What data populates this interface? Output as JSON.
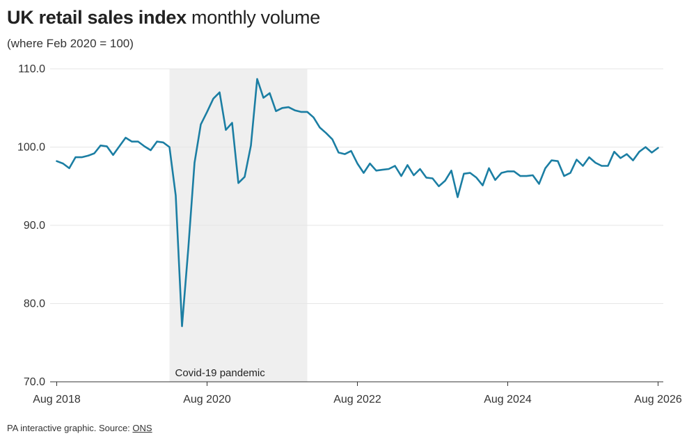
{
  "header": {
    "title_bold": "UK retail sales index",
    "title_rest": "monthly volume",
    "subtitle": "(where Feb 2020 = 100)"
  },
  "footer": {
    "text": "PA interactive graphic. Source: ",
    "source_link": "ONS"
  },
  "colors": {
    "line": "#1b7ea3",
    "shade": "#efefef",
    "grid": "#e6e6e6",
    "axis": "#333333"
  },
  "chart_data": {
    "type": "line",
    "title": "UK retail sales index monthly volume",
    "subtitle": "(where Feb 2020 = 100)",
    "xlabel": "",
    "ylabel": "",
    "ylim": [
      70,
      110
    ],
    "yticks": [
      70,
      80,
      90,
      100,
      110
    ],
    "ytick_labels": [
      "70.0",
      "80.0",
      "90.0",
      "100.0",
      "110.0"
    ],
    "xticks": [
      {
        "date": "2018-08",
        "label": "Aug 2018"
      },
      {
        "date": "2020-08",
        "label": "Aug 2020"
      },
      {
        "date": "2022-08",
        "label": "Aug 2022"
      },
      {
        "date": "2024-08",
        "label": "Aug 2024"
      },
      {
        "date": "2026-08",
        "label": "Aug 2026"
      }
    ],
    "grid": true,
    "annotations": [
      {
        "type": "shaded-range",
        "start": "2020-02",
        "end": "2021-12",
        "label": "Covid-19 pandemic"
      }
    ],
    "series": [
      {
        "x": [
          "2018-08",
          "2018-09",
          "2018-10",
          "2018-11",
          "2018-12",
          "2019-01",
          "2019-02",
          "2019-03",
          "2019-04",
          "2019-05",
          "2019-06",
          "2019-07",
          "2019-08",
          "2019-09",
          "2019-10",
          "2019-11",
          "2019-12",
          "2020-01",
          "2020-02",
          "2020-03",
          "2020-04",
          "2020-05",
          "2020-06",
          "2020-07",
          "2020-08",
          "2020-09",
          "2020-10",
          "2020-11",
          "2020-12",
          "2021-01",
          "2021-02",
          "2021-03",
          "2021-04",
          "2021-05",
          "2021-06",
          "2021-07",
          "2021-08",
          "2021-09",
          "2021-10",
          "2021-11",
          "2021-12",
          "2022-01",
          "2022-02",
          "2022-03",
          "2022-04",
          "2022-05",
          "2022-06",
          "2022-07",
          "2022-08",
          "2022-09",
          "2022-10",
          "2022-11",
          "2022-12",
          "2023-01",
          "2023-02",
          "2023-03",
          "2023-04",
          "2023-05",
          "2023-06",
          "2023-07",
          "2023-08",
          "2023-09",
          "2023-10",
          "2023-11",
          "2023-12",
          "2024-01",
          "2024-02",
          "2024-03",
          "2024-04",
          "2024-05",
          "2024-06",
          "2024-07",
          "2024-08",
          "2024-09",
          "2024-10",
          "2024-11",
          "2024-12",
          "2025-01",
          "2025-02",
          "2025-03",
          "2025-04",
          "2025-05",
          "2025-06",
          "2025-07",
          "2025-08",
          "2025-09",
          "2025-10",
          "2025-11",
          "2025-12",
          "2026-01",
          "2026-02",
          "2026-03",
          "2026-04",
          "2026-05",
          "2026-06",
          "2026-07",
          "2026-08"
        ],
        "values": [
          98.2,
          97.9,
          97.3,
          98.7,
          98.7,
          98.9,
          99.2,
          100.2,
          100.1,
          99.0,
          100.1,
          101.2,
          100.7,
          100.7,
          100.1,
          99.6,
          100.7,
          100.6,
          100.0,
          93.8,
          77.1,
          87.0,
          98.0,
          102.9,
          104.5,
          106.2,
          107.0,
          102.2,
          103.1,
          95.4,
          96.2,
          100.2,
          108.7,
          106.3,
          106.9,
          104.6,
          105.0,
          105.1,
          104.7,
          104.5,
          104.5,
          103.8,
          102.5,
          101.8,
          101.0,
          99.3,
          99.1,
          99.5,
          97.9,
          96.7,
          97.9,
          97.0,
          97.1,
          97.2,
          97.6,
          96.3,
          97.7,
          96.4,
          97.2,
          96.1,
          96.0,
          95.0,
          95.7,
          97.0,
          93.6,
          96.6,
          96.7,
          96.1,
          95.1,
          97.3,
          95.8,
          96.7,
          96.9,
          96.9,
          96.3,
          96.3,
          96.4,
          95.3,
          97.3,
          98.3,
          98.2,
          96.3,
          96.7,
          98.4,
          97.6,
          98.7,
          98.0,
          97.6,
          97.6,
          99.4,
          98.6,
          99.1,
          98.3,
          99.4,
          100.0,
          99.3,
          99.9
        ]
      }
    ]
  }
}
